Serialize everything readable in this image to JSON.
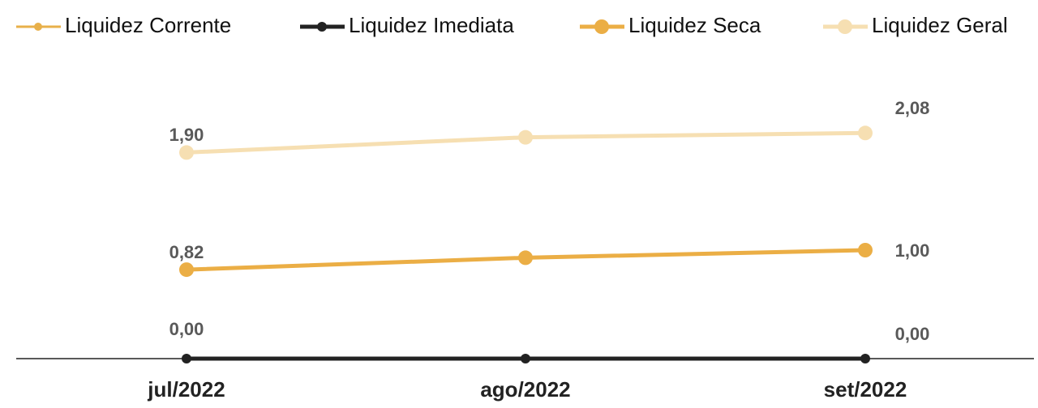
{
  "chart_data": {
    "type": "line",
    "categories": [
      "jul/2022",
      "ago/2022",
      "set/2022"
    ],
    "ylim": [
      0,
      2.5
    ],
    "series": [
      {
        "name": "Liquidez Corrente",
        "color": "#e8b04a",
        "values": [
          0.82,
          0.93,
          1.0
        ]
      },
      {
        "name": "Liquidez Imediata",
        "color": "#222222",
        "values": [
          0,
          0,
          0
        ],
        "value_labels": [
          "0,00",
          null,
          "0,00"
        ]
      },
      {
        "name": "Liquidez Seca",
        "color": "#ebae45",
        "values": [
          0.82,
          0.93,
          1.0
        ],
        "value_labels": [
          "0,82",
          null,
          "1,00"
        ]
      },
      {
        "name": "Liquidez Geral",
        "color": "#f6dfb2",
        "values": [
          1.9,
          2.04,
          2.08
        ],
        "value_labels": [
          "1,90",
          null,
          "2,08"
        ]
      }
    ]
  }
}
